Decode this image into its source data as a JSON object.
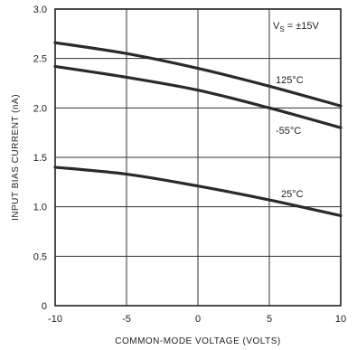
{
  "chart_data": {
    "type": "line",
    "xlabel": "COMMON-MODE VOLTAGE (VOLTS)",
    "ylabel": "INPUT BIAS CURRENT (nA)",
    "xlim": [
      -10,
      10
    ],
    "ylim": [
      0,
      3.0
    ],
    "x_ticks": [
      "-10",
      "-5",
      "0",
      "5",
      "10"
    ],
    "y_ticks": [
      "0",
      "0.5",
      "1.0",
      "1.5",
      "2.0",
      "2.5",
      "3.0"
    ],
    "grid": true,
    "annotation": {
      "prefix": "V",
      "subscript": "S",
      "suffix": " = ±15V"
    },
    "series": [
      {
        "name": "125°C",
        "x": [
          -10,
          -5,
          0,
          5,
          10
        ],
        "y": [
          2.66,
          2.55,
          2.4,
          2.22,
          2.02
        ]
      },
      {
        "name": "-55°C",
        "x": [
          -10,
          -5,
          0,
          5,
          10
        ],
        "y": [
          2.42,
          2.31,
          2.18,
          2.0,
          1.8
        ]
      },
      {
        "name": "25°C",
        "x": [
          -10,
          -5,
          0,
          5,
          10
        ],
        "y": [
          1.4,
          1.33,
          1.21,
          1.07,
          0.91
        ]
      }
    ]
  }
}
